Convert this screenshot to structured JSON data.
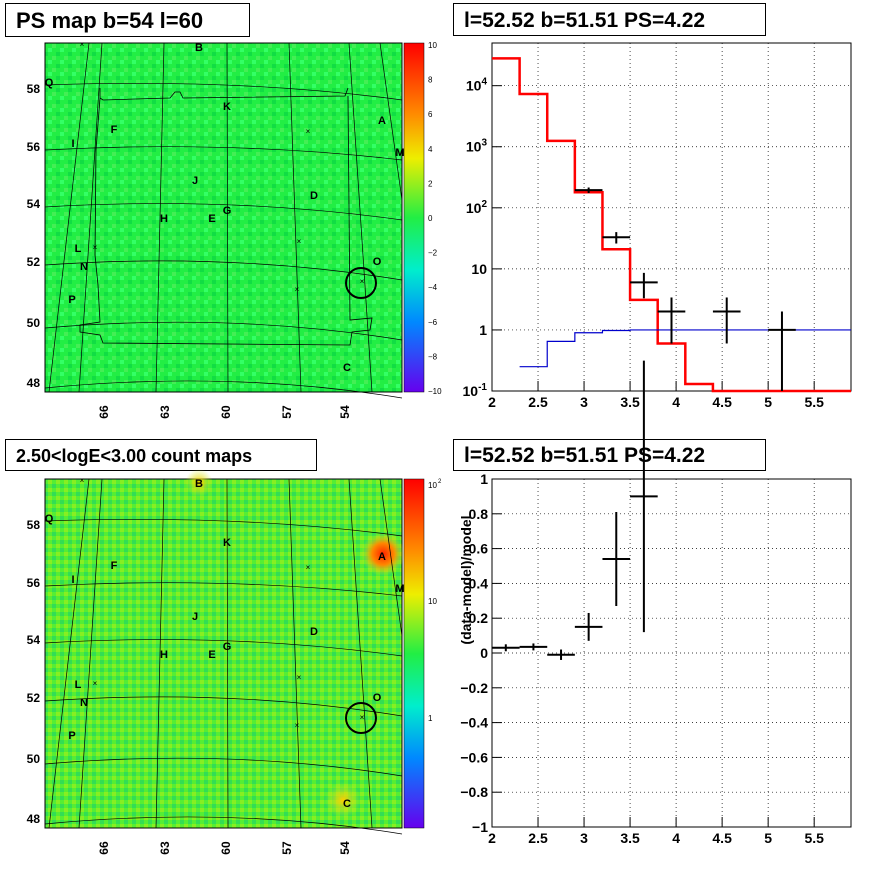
{
  "titles": {
    "map1": "PS map b=54 l=60",
    "spec1": "l=52.52 b=51.51 PS=4.22",
    "map2": "2.50<logE<3.00 count maps",
    "spec2": "l=52.52 b=51.51 PS=4.22"
  },
  "colors": {
    "map_fill": "#22ee44",
    "map_fill_counts": "#55ee33",
    "model_line": "#ff0000",
    "background_line": "#0000cc",
    "data_marker": "#000000"
  },
  "map_common": {
    "lon_ticks": [
      "66",
      "63",
      "60",
      "57",
      "54"
    ],
    "lat_ticks": [
      "58",
      "56",
      "54",
      "52",
      "50",
      "48"
    ],
    "sources": [
      "B",
      "Q",
      "K",
      "A",
      "F",
      "I",
      "M",
      "J",
      "D",
      "G",
      "H",
      "E",
      "L",
      "N",
      "O",
      "P",
      "C"
    ]
  },
  "colorbar1": {
    "labels": [
      "10",
      "8",
      "6",
      "4",
      "2",
      "0",
      "−2",
      "−4",
      "−6",
      "−8",
      "−10"
    ]
  },
  "colorbar2": {
    "labels": [
      "10",
      "10",
      "1"
    ],
    "top_exponent": "2"
  },
  "chart_data": [
    {
      "type": "line",
      "panel": "spectrum",
      "x_range": [
        2,
        5.9
      ],
      "y_scale": "log",
      "y_range": [
        0.1,
        50000
      ],
      "grid": true,
      "x_ticks": [
        "2",
        "2.5",
        "3",
        "3.5",
        "4",
        "4.5",
        "5",
        "5.5"
      ],
      "y_ticks": [
        "10^-1",
        "1",
        "10",
        "10^2",
        "10^3",
        "10^4"
      ],
      "series": [
        {
          "role": "model",
          "color": "#ff0000",
          "step_edges": [
            2.0,
            2.3,
            2.6,
            2.9,
            3.2,
            3.5,
            3.8,
            4.1,
            4.4,
            5.9
          ],
          "values": [
            28000,
            7300,
            1250,
            180,
            21,
            3.1,
            0.6,
            0.13,
            0.1
          ]
        },
        {
          "role": "background",
          "color": "#0000cc",
          "step_edges": [
            2.3,
            2.6,
            2.9,
            3.2,
            3.5,
            5.9
          ],
          "values": [
            0.25,
            0.65,
            0.9,
            0.98,
            1.0
          ]
        },
        {
          "role": "data",
          "color": "#000000",
          "points": [
            {
              "x": 3.05,
              "y": 195,
              "xerr": 0.15,
              "ylo": 175,
              "yhi": 215
            },
            {
              "x": 3.35,
              "y": 33,
              "xerr": 0.15,
              "ylo": 26,
              "yhi": 40
            },
            {
              "x": 3.65,
              "y": 6,
              "xerr": 0.15,
              "ylo": 3.3,
              "yhi": 8.6
            },
            {
              "x": 3.95,
              "y": 2,
              "xerr": 0.15,
              "ylo": 0.6,
              "yhi": 3.4
            },
            {
              "x": 4.55,
              "y": 2,
              "xerr": 0.15,
              "ylo": 0.6,
              "yhi": 3.4
            },
            {
              "x": 5.15,
              "y": 1,
              "xerr": 0.15,
              "ylo": 0.1,
              "yhi": 2
            }
          ]
        }
      ]
    },
    {
      "type": "scatter",
      "panel": "residuals",
      "ylabel": "(data-model)/model",
      "x_range": [
        2,
        5.9
      ],
      "y_range": [
        -1,
        1
      ],
      "grid": true,
      "x_ticks": [
        "2",
        "2.5",
        "3",
        "3.5",
        "4",
        "4.5",
        "5",
        "5.5"
      ],
      "y_ticks": [
        "−1",
        "−0.8",
        "−0.6",
        "−0.4",
        "−0.2",
        "0",
        "0.2",
        "0.4",
        "0.6",
        "0.8",
        "1"
      ],
      "points": [
        {
          "x": 2.15,
          "y": 0.03,
          "xerr": 0.15,
          "yerr": 0.02
        },
        {
          "x": 2.45,
          "y": 0.035,
          "xerr": 0.15,
          "yerr": 0.02
        },
        {
          "x": 2.75,
          "y": -0.01,
          "xerr": 0.15,
          "yerr": 0.03
        },
        {
          "x": 3.05,
          "y": 0.15,
          "xerr": 0.15,
          "yerr": 0.08
        },
        {
          "x": 3.35,
          "y": 0.54,
          "xerr": 0.15,
          "yerr": 0.27
        },
        {
          "x": 3.65,
          "y": 0.9,
          "xerr": 0.15,
          "yerr": 0.78
        }
      ]
    }
  ]
}
